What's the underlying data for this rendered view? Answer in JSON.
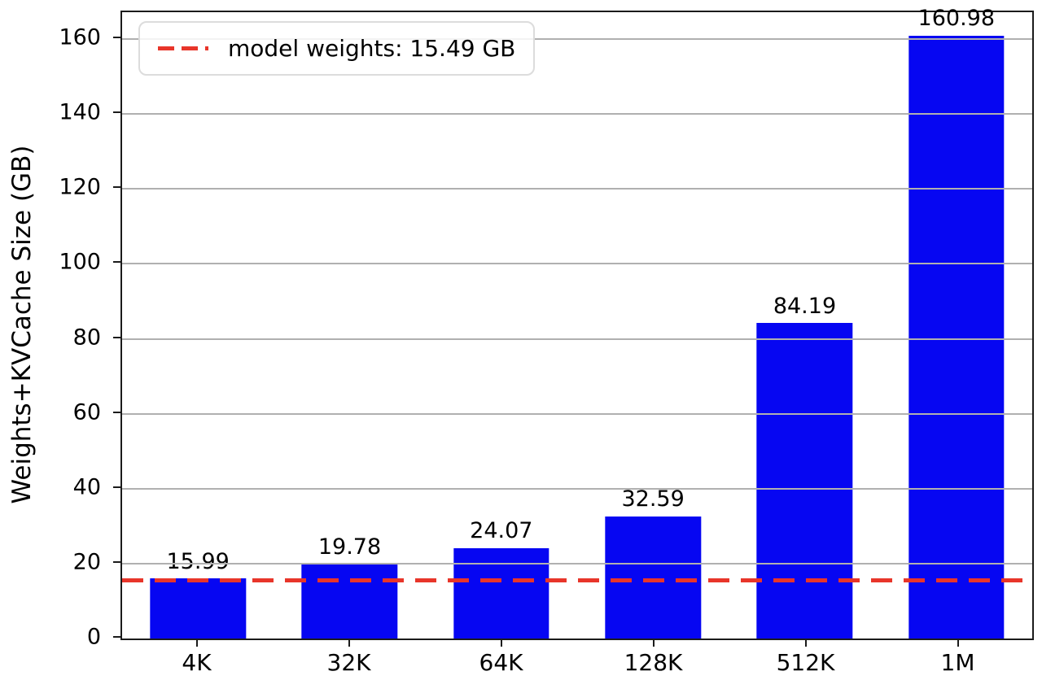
{
  "chart_data": {
    "type": "bar",
    "categories": [
      "4K",
      "32K",
      "64K",
      "128K",
      "512K",
      "1M"
    ],
    "values": [
      15.99,
      19.78,
      24.07,
      32.59,
      84.19,
      160.98
    ],
    "bar_labels": [
      "15.99",
      "19.78",
      "24.07",
      "32.59",
      "84.19",
      "160.98"
    ],
    "title": "",
    "xlabel": "",
    "ylabel": "Weights+KVCache Size (GB)",
    "ylim": [
      0,
      167.2
    ],
    "yticks": [
      0,
      20,
      40,
      60,
      80,
      100,
      120,
      140,
      160
    ],
    "grid": true,
    "grid_color": "#b0b0b0",
    "bar_color": "#0606f2",
    "axis_color": "#1b1b1b",
    "legend_position": "upper left",
    "reference_line": {
      "value": 15.49,
      "label": "model weights: 15.49 GB",
      "color": "#e8352a",
      "style": "dashed"
    }
  }
}
